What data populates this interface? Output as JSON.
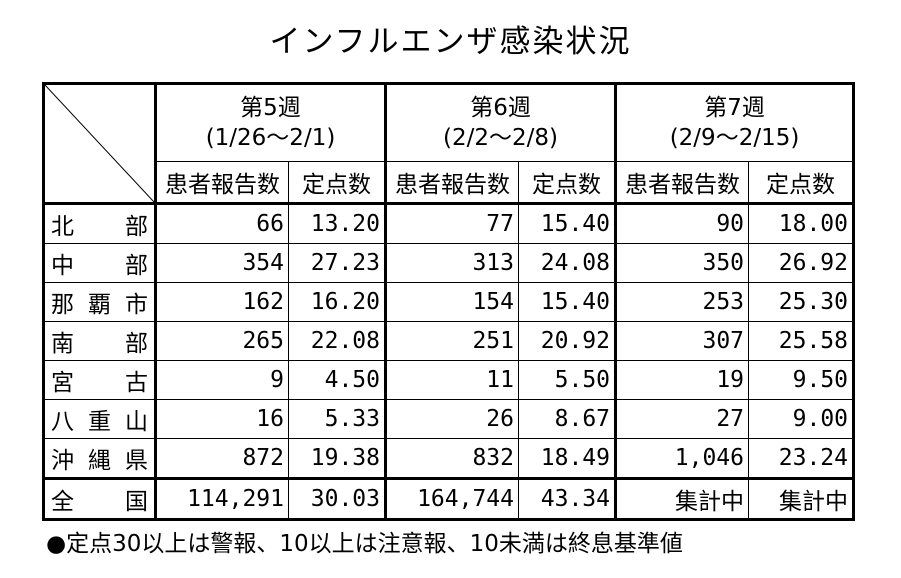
{
  "title": "インフルエンザ感染状況",
  "weeks": [
    {
      "name": "第5週",
      "range": "(1/26～2/1)"
    },
    {
      "name": "第6週",
      "range": "(2/2～2/8)"
    },
    {
      "name": "第7週",
      "range": "(2/9～2/15)"
    }
  ],
  "subheaders": {
    "reports": "患者報告数",
    "fixed": "定点数"
  },
  "rows": [
    {
      "region": [
        "北",
        "部"
      ],
      "values": [
        "66",
        "13.20",
        "77",
        "15.40",
        "90",
        "18.00"
      ]
    },
    {
      "region": [
        "中",
        "部"
      ],
      "values": [
        "354",
        "27.23",
        "313",
        "24.08",
        "350",
        "26.92"
      ]
    },
    {
      "region": [
        "那",
        "覇",
        "市"
      ],
      "values": [
        "162",
        "16.20",
        "154",
        "15.40",
        "253",
        "25.30"
      ]
    },
    {
      "region": [
        "南",
        "部"
      ],
      "values": [
        "265",
        "22.08",
        "251",
        "20.92",
        "307",
        "25.58"
      ]
    },
    {
      "region": [
        "宮",
        "古"
      ],
      "values": [
        "9",
        "4.50",
        "11",
        "5.50",
        "19",
        "9.50"
      ]
    },
    {
      "region": [
        "八",
        "重",
        "山"
      ],
      "values": [
        "16",
        "5.33",
        "26",
        "8.67",
        "27",
        "9.00"
      ]
    },
    {
      "region": [
        "沖",
        "縄",
        "県"
      ],
      "values": [
        "872",
        "19.38",
        "832",
        "18.49",
        "1,046",
        "23.24"
      ]
    }
  ],
  "total": {
    "region": [
      "全",
      "国"
    ],
    "values": [
      "114,291",
      "30.03",
      "164,744",
      "43.34",
      "集計中",
      "集計中"
    ]
  },
  "note": "●定点30以上は警報、10以上は注意報、10未満は終息基準値"
}
